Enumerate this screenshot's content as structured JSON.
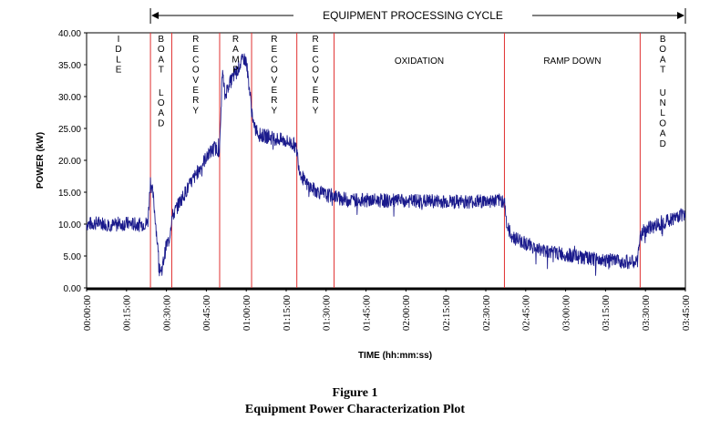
{
  "figure": {
    "number": "Figure 1",
    "title": "Equipment Power Characterization Plot"
  },
  "chart_data": {
    "type": "line",
    "cycle_label": "EQUIPMENT PROCESSING CYCLE",
    "xlabel": "TIME (hh:mm:ss)",
    "ylabel": "POWER (kW)",
    "ylim": [
      0,
      40
    ],
    "xlim_minutes": [
      0,
      225
    ],
    "y_ticks": [
      "0.00",
      "5.00",
      "10.00",
      "15.00",
      "20.00",
      "25.00",
      "30.00",
      "35.00",
      "40.00"
    ],
    "x_ticks": [
      "00:00:00",
      "00:15:00",
      "00:30:00",
      "00:45:00",
      "01:00:00",
      "01:15:00",
      "01:30:00",
      "01:45:00",
      "02:00:00",
      "02:15:00",
      "02:30:00",
      "02:45:00",
      "03:00:00",
      "03:15:00",
      "03:30:00",
      "03:45:00"
    ],
    "phase_boundaries_minutes": [
      24,
      32,
      50,
      62,
      79,
      93,
      157,
      208
    ],
    "phases": [
      {
        "label": "IDLE",
        "vertical": true
      },
      {
        "label": "BOAT LOAD",
        "vertical": true
      },
      {
        "label": "RECOVERY",
        "vertical": true
      },
      {
        "label": "RAMP",
        "vertical": true
      },
      {
        "label": "RECOVERY",
        "vertical": true
      },
      {
        "label": "RECOVERY",
        "vertical": true
      },
      {
        "label": "OXIDATION",
        "vertical": false
      },
      {
        "label": "RAMP DOWN",
        "vertical": false
      },
      {
        "label": "BOAT UNLOAD",
        "vertical": true
      }
    ],
    "series": [
      {
        "color": "#1a1a8c",
        "x_minutes": [
          0,
          5,
          10,
          15,
          20,
          23,
          24,
          25,
          26,
          27,
          28,
          29,
          30,
          31,
          32,
          35,
          40,
          45,
          48,
          50,
          51,
          52,
          53,
          55,
          57,
          59,
          60,
          61,
          62,
          63,
          65,
          70,
          75,
          78,
          79,
          80,
          82,
          85,
          90,
          93,
          95,
          100,
          110,
          120,
          130,
          140,
          150,
          157,
          158,
          160,
          165,
          170,
          180,
          190,
          200,
          207,
          208,
          209,
          212,
          215,
          220,
          225
        ],
        "values": [
          10.0,
          10.2,
          9.8,
          10.1,
          9.9,
          10.2,
          16.8,
          14.5,
          10.0,
          5.0,
          2.0,
          4.5,
          6.8,
          7.5,
          11.0,
          13.5,
          17.0,
          20.5,
          22.0,
          21.5,
          34.0,
          30.0,
          31.5,
          33.0,
          34.5,
          36.0,
          35.5,
          32.0,
          28.0,
          25.0,
          24.0,
          23.5,
          23.0,
          22.5,
          21.5,
          18.5,
          16.5,
          15.5,
          14.5,
          14.5,
          14.0,
          13.8,
          13.7,
          13.6,
          13.6,
          13.5,
          13.6,
          13.7,
          9.5,
          8.0,
          7.0,
          6.0,
          5.2,
          4.5,
          4.2,
          4.0,
          8.0,
          8.8,
          9.5,
          10.0,
          10.8,
          11.8
        ]
      }
    ]
  }
}
